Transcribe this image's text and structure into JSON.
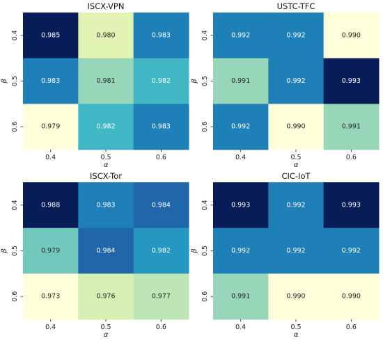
{
  "chart_data": [
    {
      "type": "heatmap",
      "title": "ISCX-VPN",
      "xlabel": "α",
      "ylabel": "β",
      "x_categories": [
        "0.4",
        "0.5",
        "0.6"
      ],
      "y_categories": [
        "0.4",
        "0.5",
        "0.6"
      ],
      "values": [
        [
          0.985,
          0.98,
          0.983
        ],
        [
          0.983,
          0.981,
          0.982
        ],
        [
          0.979,
          0.982,
          0.983
        ]
      ],
      "labels": [
        [
          "0.985",
          "0.980",
          "0.983"
        ],
        [
          "0.983",
          "0.981",
          "0.982"
        ],
        [
          "0.979",
          "0.982",
          "0.983"
        ]
      ],
      "colormap": "YlGnBu"
    },
    {
      "type": "heatmap",
      "title": "USTC-TFC",
      "xlabel": "α",
      "ylabel": "β",
      "x_categories": [
        "0.4",
        "0.5",
        "0.6"
      ],
      "y_categories": [
        "0.4",
        "0.5",
        "0.6"
      ],
      "values": [
        [
          0.992,
          0.992,
          0.99
        ],
        [
          0.991,
          0.992,
          0.993
        ],
        [
          0.992,
          0.99,
          0.991
        ]
      ],
      "labels": [
        [
          "0.992",
          "0.992",
          "0.990"
        ],
        [
          "0.991",
          "0.992",
          "0.993"
        ],
        [
          "0.992",
          "0.990",
          "0.991"
        ]
      ],
      "colormap": "YlGnBu"
    },
    {
      "type": "heatmap",
      "title": "ISCX-Tor",
      "xlabel": "α",
      "ylabel": "β",
      "x_categories": [
        "0.4",
        "0.5",
        "0.6"
      ],
      "y_categories": [
        "0.4",
        "0.5",
        "0.6"
      ],
      "values": [
        [
          0.988,
          0.983,
          0.984
        ],
        [
          0.979,
          0.984,
          0.982
        ],
        [
          0.973,
          0.976,
          0.977
        ]
      ],
      "labels": [
        [
          "0.988",
          "0.983",
          "0.984"
        ],
        [
          "0.979",
          "0.984",
          "0.982"
        ],
        [
          "0.973",
          "0.976",
          "0.977"
        ]
      ],
      "colormap": "YlGnBu"
    },
    {
      "type": "heatmap",
      "title": "CIC-IoT",
      "xlabel": "α",
      "ylabel": "β",
      "x_categories": [
        "0.4",
        "0.5",
        "0.6"
      ],
      "y_categories": [
        "0.4",
        "0.5",
        "0.6"
      ],
      "values": [
        [
          0.993,
          0.992,
          0.993
        ],
        [
          0.992,
          0.992,
          0.992
        ],
        [
          0.991,
          0.99,
          0.99
        ]
      ],
      "labels": [
        [
          "0.993",
          "0.992",
          "0.993"
        ],
        [
          "0.992",
          "0.992",
          "0.992"
        ],
        [
          "0.991",
          "0.990",
          "0.990"
        ]
      ],
      "colormap": "YlGnBu"
    }
  ]
}
